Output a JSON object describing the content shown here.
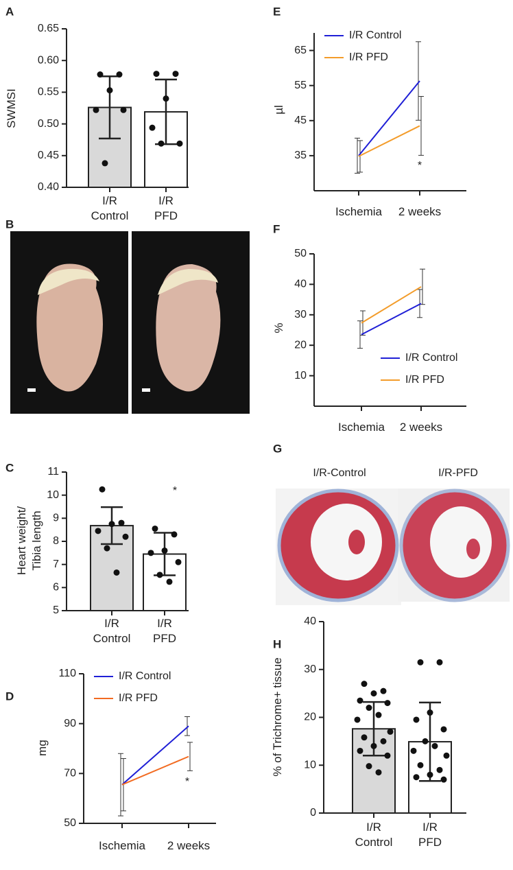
{
  "figures": [
    {
      "panel": "B"
    },
    {
      "panel": "G",
      "captions": [
        "I/R-Control",
        "I/R-PFD"
      ]
    }
  ],
  "chart_data": [
    {
      "panel": "A",
      "type": "bar",
      "y_label": "SWMSI",
      "categories": [
        "I/R\nControl",
        "I/R\nPFD"
      ],
      "values": [
        0.526,
        0.519
      ],
      "errors": [
        0.049,
        0.051
      ],
      "points": [
        [
          0.578,
          0.578,
          0.553,
          0.522,
          0.522,
          0.438
        ],
        [
          0.579,
          0.579,
          0.54,
          0.494,
          0.469,
          0.469
        ]
      ],
      "colors": [
        "#d9d9d9",
        "#ffffff"
      ],
      "ylim": [
        0.4,
        0.65
      ],
      "yticks": [
        {
          "value": 0.4,
          "label": "0.40"
        },
        {
          "value": 0.45,
          "label": "0.45"
        },
        {
          "value": 0.5,
          "label": "0.50"
        },
        {
          "value": 0.55,
          "label": "0.55"
        },
        {
          "value": 0.6,
          "label": "0.60"
        },
        {
          "value": 0.65,
          "label": "0.65"
        }
      ]
    },
    {
      "panel": "C",
      "type": "bar",
      "y_label": "Heart weight/\nTibia length",
      "categories": [
        "I/R\nControl",
        "I/R\nPFD"
      ],
      "values": [
        8.68,
        7.45
      ],
      "errors": [
        0.8,
        0.92
      ],
      "points": [
        [
          10.25,
          8.8,
          8.75,
          8.45,
          8.2,
          7.7,
          6.65
        ],
        [
          8.55,
          8.3,
          7.6,
          7.5,
          7.1,
          6.55,
          6.25
        ]
      ],
      "colors": [
        "#d9d9d9",
        "#ffffff"
      ],
      "annotation": "*",
      "ylim": [
        5,
        11
      ],
      "yticks": [
        5,
        6,
        7,
        8,
        9,
        10,
        11
      ]
    },
    {
      "panel": "D",
      "type": "line",
      "y_label": "mg",
      "categories": [
        "Ischemia",
        "2 weeks"
      ],
      "legend": "upper left",
      "annotation": "*",
      "series": [
        {
          "name": "I/R Control",
          "color": "#1f1fd6",
          "values": [
            65.5,
            89
          ],
          "errors": [
            12.5,
            3.8
          ]
        },
        {
          "name": "I/R PFD",
          "color": "#f26b21",
          "values": [
            65.5,
            76.8
          ],
          "errors": [
            10.5,
            5.7
          ]
        }
      ],
      "ylim": [
        50,
        110
      ],
      "yticks": [
        50,
        70,
        90,
        110
      ]
    },
    {
      "panel": "E",
      "type": "line",
      "y_label": "µl",
      "categories": [
        "Ischemia",
        "2 weeks"
      ],
      "legend": "upper left",
      "annotation": "*",
      "series": [
        {
          "name": "I/R Control",
          "color": "#1f1fd6",
          "values": [
            35,
            56.3
          ],
          "errors": [
            5,
            11.2
          ]
        },
        {
          "name": "I/R PFD",
          "color": "#f39c2a",
          "values": [
            34.8,
            43.5
          ],
          "errors": [
            4.5,
            8.4
          ]
        }
      ],
      "ylim": [
        25,
        70
      ],
      "yticks": [
        35,
        45,
        55,
        65
      ]
    },
    {
      "panel": "F",
      "type": "line",
      "y_label": "%",
      "categories": [
        "Ischemia",
        "2 weeks"
      ],
      "legend": "lower right",
      "series": [
        {
          "name": "I/R Control",
          "color": "#1f1fd6",
          "values": [
            23.5,
            33.7
          ],
          "errors": [
            4.5,
            4.6
          ]
        },
        {
          "name": "I/R PFD",
          "color": "#f39c2a",
          "values": [
            27.3,
            39.2
          ],
          "errors": [
            4,
            5.8
          ]
        }
      ],
      "ylim": [
        0,
        50
      ],
      "yticks": [
        10,
        20,
        30,
        40,
        50
      ]
    },
    {
      "panel": "H",
      "type": "bar",
      "y_label": "% of Trichrome+ tissue",
      "categories": [
        "I/R\nControl",
        "I/R\nPFD"
      ],
      "values": [
        17.6,
        14.9
      ],
      "errors": [
        5.6,
        8.2
      ],
      "points": [
        [
          27,
          25.5,
          25,
          23.5,
          23,
          22,
          20.5,
          19.5,
          17,
          15.8,
          15,
          14,
          13,
          12,
          9.8,
          8.5
        ],
        [
          31.5,
          31.5,
          21,
          19.5,
          17.5,
          15,
          14,
          13,
          12,
          10,
          9,
          8,
          7.5,
          7
        ]
      ],
      "colors": [
        "#d9d9d9",
        "#ffffff"
      ],
      "ylim": [
        0,
        40
      ],
      "yticks": [
        0,
        10,
        20,
        30,
        40
      ]
    }
  ]
}
